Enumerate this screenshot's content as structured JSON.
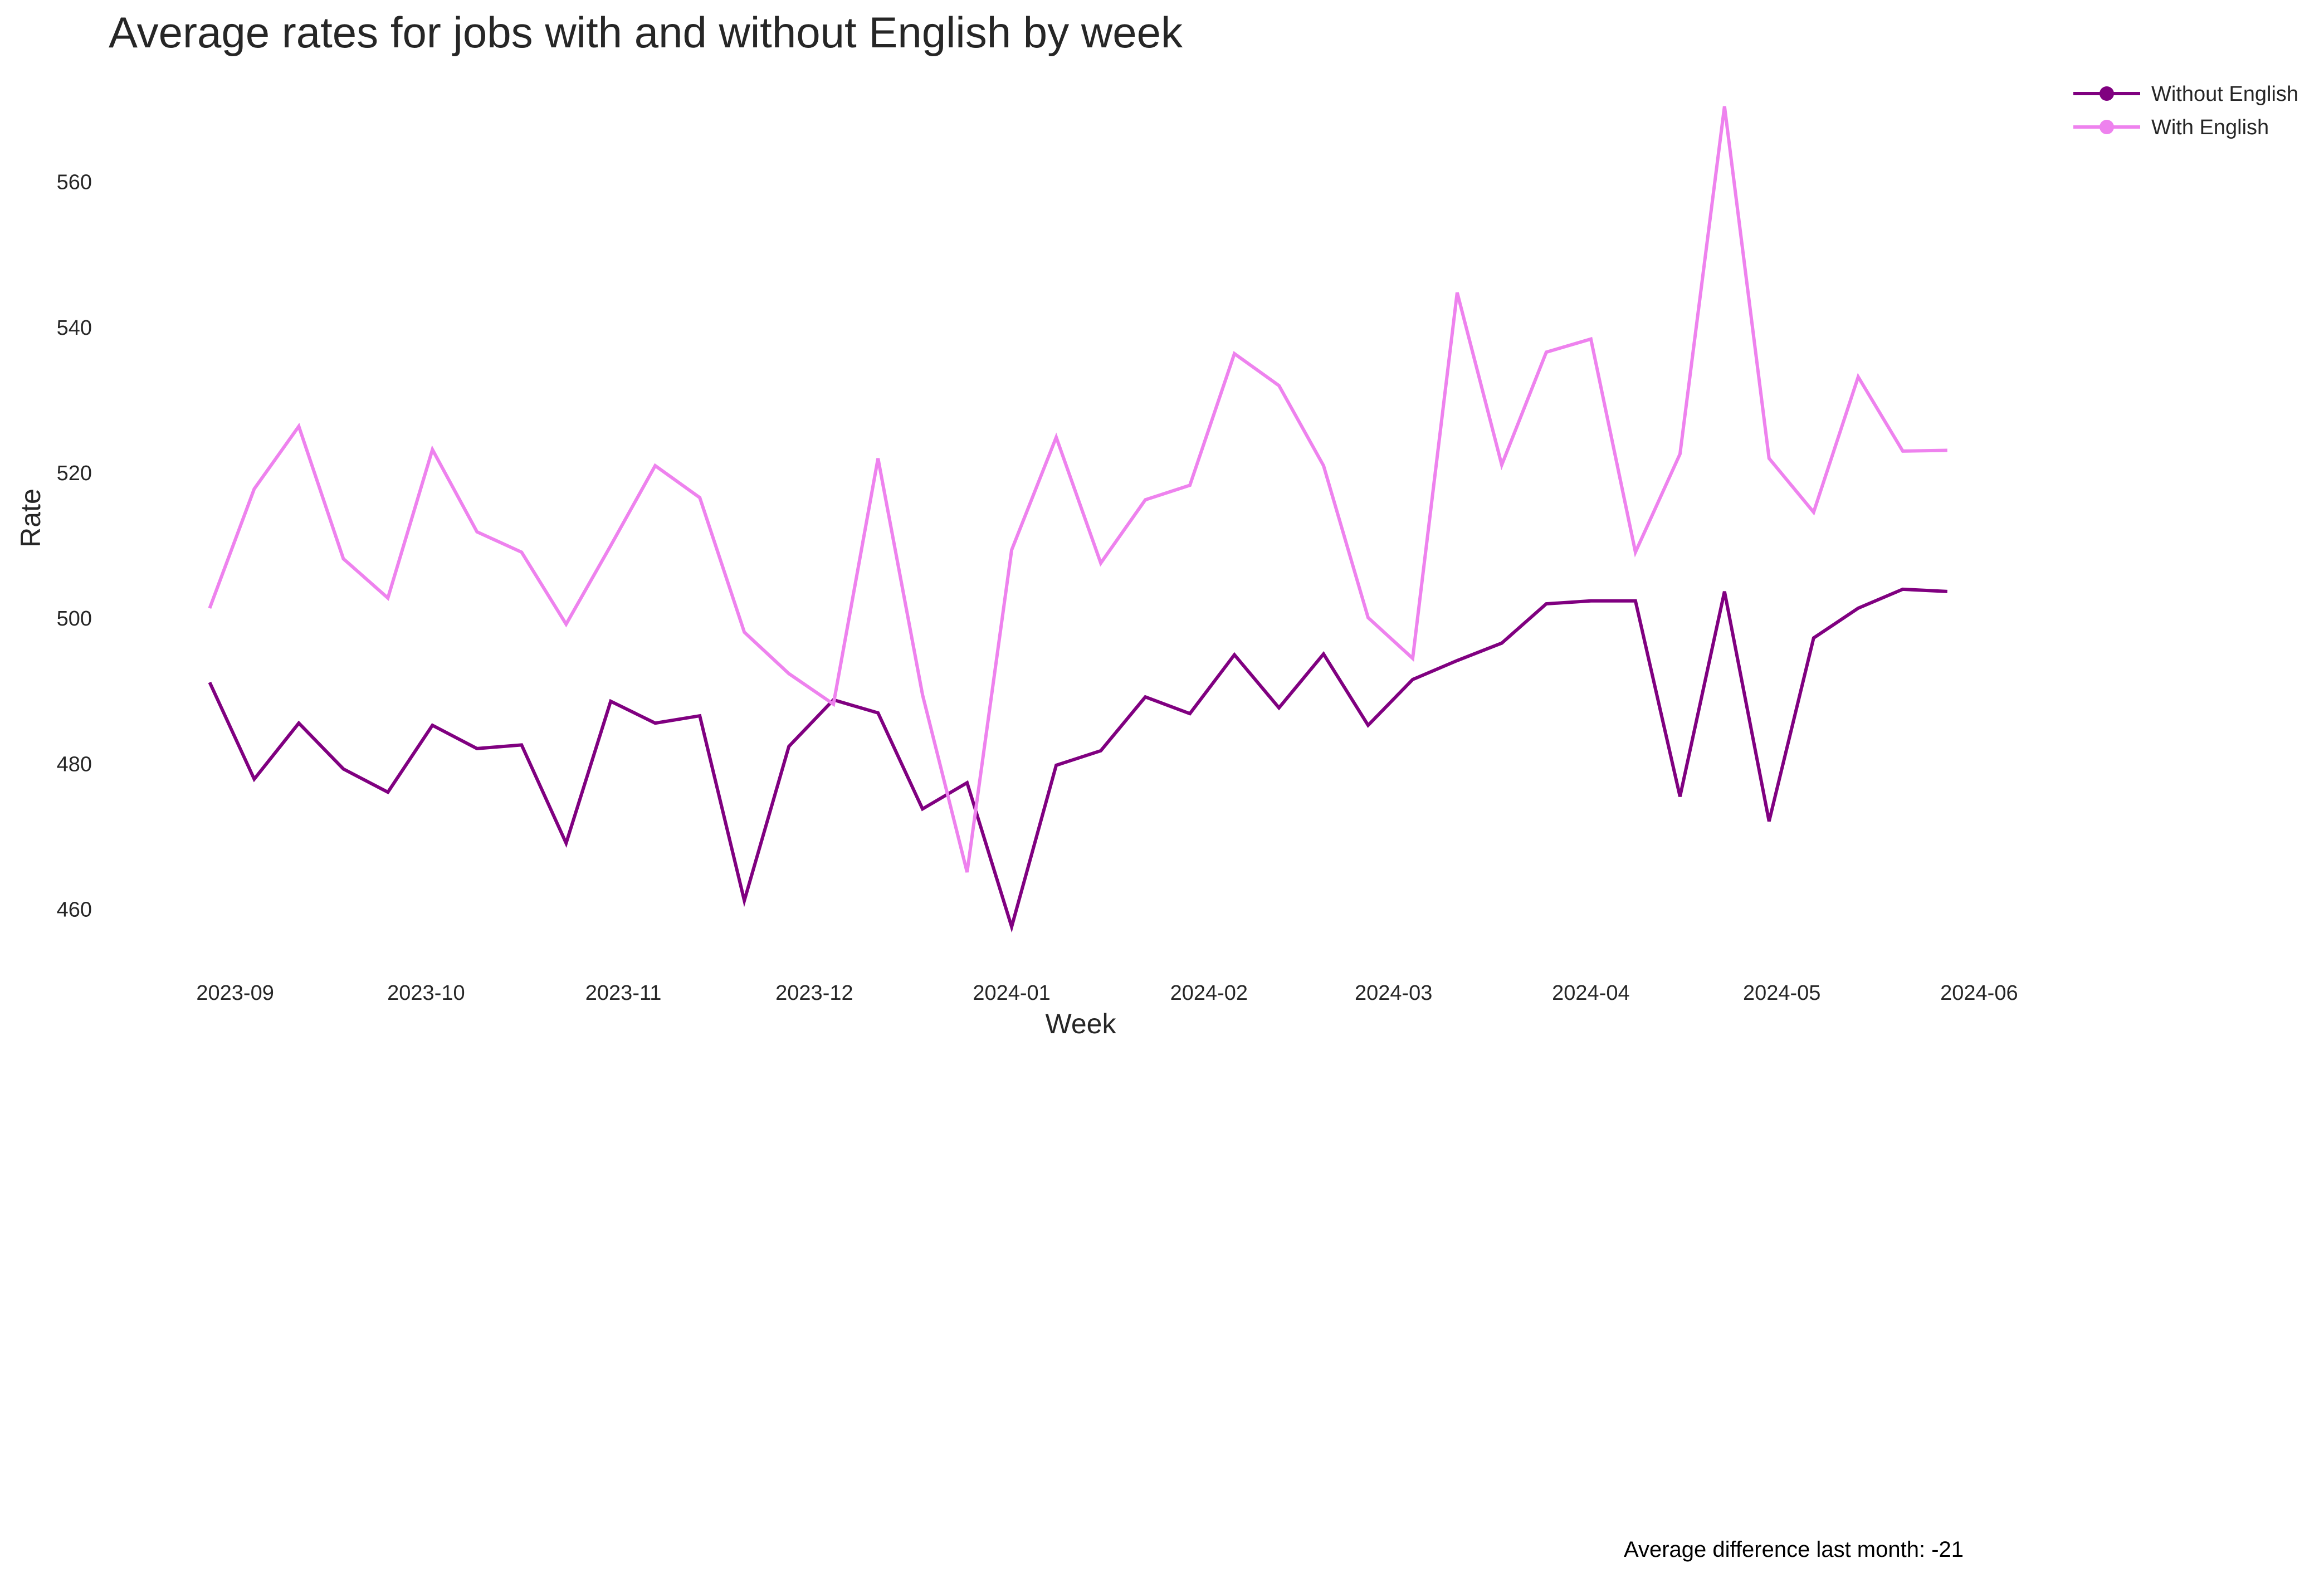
{
  "chart_data": {
    "type": "line",
    "title": "Average rates for jobs with and without English by week",
    "xlabel": "Week",
    "ylabel": "Rate",
    "x_ticks": [
      "2023-09",
      "2023-10",
      "2023-11",
      "2023-12",
      "2024-01",
      "2024-02",
      "2024-03",
      "2024-04",
      "2024-05",
      "2024-06"
    ],
    "y_ticks": [
      460,
      480,
      500,
      520,
      540,
      560
    ],
    "xlim": [
      "2023-08-20",
      "2024-06-13"
    ],
    "ylim": [
      451,
      572
    ],
    "grid": false,
    "legend_position": "top-right",
    "x": [
      "2023-08-28",
      "2023-09-04",
      "2023-09-11",
      "2023-09-18",
      "2023-09-25",
      "2023-10-02",
      "2023-10-09",
      "2023-10-16",
      "2023-10-23",
      "2023-10-30",
      "2023-11-06",
      "2023-11-13",
      "2023-11-20",
      "2023-11-27",
      "2023-12-04",
      "2023-12-11",
      "2023-12-18",
      "2023-12-25",
      "2024-01-01",
      "2024-01-08",
      "2024-01-15",
      "2024-01-22",
      "2024-01-29",
      "2024-02-05",
      "2024-02-12",
      "2024-02-19",
      "2024-02-26",
      "2024-03-04",
      "2024-03-11",
      "2024-03-18",
      "2024-03-25",
      "2024-04-01",
      "2024-04-08",
      "2024-04-15",
      "2024-04-22",
      "2024-04-29",
      "2024-05-06",
      "2024-05-13",
      "2024-05-20",
      "2024-05-27"
    ],
    "series": [
      {
        "name": "Without English",
        "color": "#800080",
        "values": [
          491.2,
          477.9,
          485.6,
          479.3,
          476.1,
          485.3,
          482.1,
          482.6,
          469.1,
          488.6,
          485.6,
          486.6,
          461.2,
          482.4,
          488.8,
          487.0,
          473.8,
          477.4,
          457.6,
          479.8,
          481.8,
          489.2,
          486.9,
          495.0,
          487.7,
          495.1,
          485.3,
          491.6,
          494.2,
          496.6,
          502.0,
          502.4,
          502.4,
          475.5,
          503.7,
          472.1,
          497.3,
          501.4,
          504.0,
          503.7
        ]
      },
      {
        "name": "With English",
        "color": "#ee82ee",
        "values": [
          501.4,
          517.8,
          526.4,
          508.2,
          502.8,
          523.2,
          511.9,
          509.1,
          499.2,
          510.0,
          521.0,
          516.6,
          498.1,
          492.4,
          488.2,
          522.0,
          489.5,
          465.1,
          509.4,
          524.9,
          507.6,
          516.3,
          518.3,
          536.4,
          532.0,
          521.0,
          500.1,
          494.5,
          544.8,
          521.1,
          536.6,
          538.4,
          509.1,
          522.6,
          570.4,
          522.0,
          514.6,
          533.2,
          523.0,
          523.1
        ]
      }
    ],
    "annotation": "Average difference last month: -21"
  }
}
